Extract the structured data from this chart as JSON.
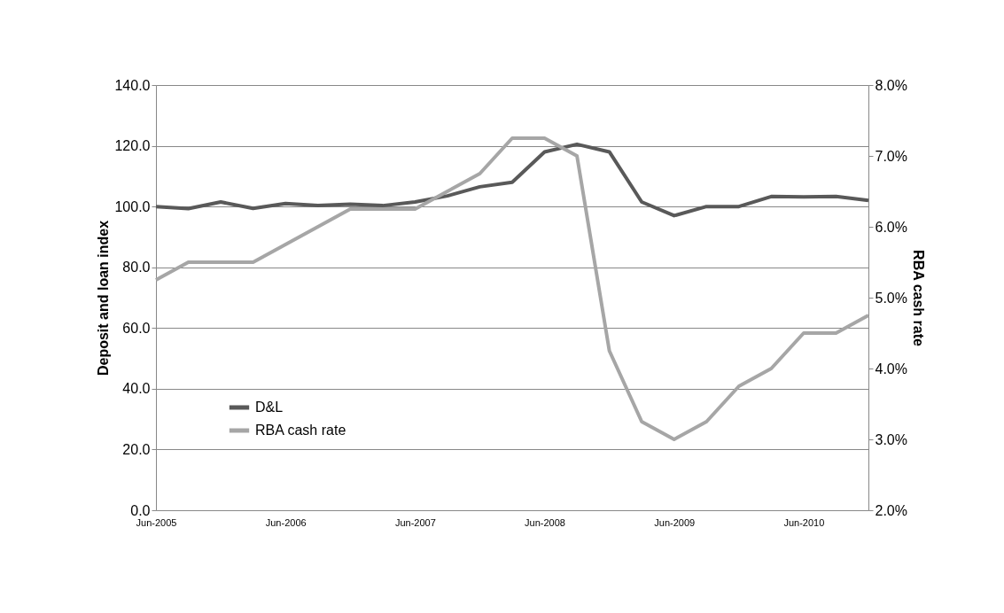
{
  "chart_data": {
    "type": "line",
    "categories": [
      "Jun-2005",
      null,
      null,
      null,
      "Jun-2006",
      null,
      null,
      null,
      "Jun-2007",
      null,
      null,
      null,
      "Jun-2008",
      null,
      null,
      null,
      "Jun-2009",
      null,
      null,
      null,
      "Jun-2010",
      null,
      null
    ],
    "series": [
      {
        "name": "D&L",
        "color": "#595959",
        "values": [
          100,
          99.3,
          101.5,
          99.4,
          101,
          100.3,
          100.8,
          100.3,
          101.5,
          103.5,
          106.5,
          108,
          118,
          120.5,
          118,
          101.5,
          97,
          100,
          100,
          103.3,
          103.2,
          103.3,
          102
        ]
      },
      {
        "name": "RBA cash rate",
        "color": "#a6a6a6",
        "axis": "y2",
        "values": [
          5.25,
          5.5,
          5.5,
          5.5,
          5.75,
          6.0,
          6.25,
          6.25,
          6.25,
          6.5,
          6.75,
          7.25,
          7.25,
          7.0,
          4.25,
          3.25,
          3.0,
          3.25,
          3.75,
          4.0,
          4.5,
          4.5,
          4.75
        ]
      }
    ],
    "ylabel": "Deposit and loan index",
    "y2label": "RBA cash rate",
    "ylim": [
      0,
      140
    ],
    "yticks": [
      {
        "value": 0,
        "label": "0.0"
      },
      {
        "value": 20,
        "label": "20.0"
      },
      {
        "value": 40,
        "label": "40.0"
      },
      {
        "value": 60,
        "label": "60.0"
      },
      {
        "value": 80,
        "label": "80.0"
      },
      {
        "value": 100,
        "label": "100.0"
      },
      {
        "value": 120,
        "label": "120.0"
      },
      {
        "value": 140,
        "label": "140.0"
      }
    ],
    "y2lim": [
      2,
      8
    ],
    "y2ticks": [
      {
        "value": 2,
        "label": "2.0%"
      },
      {
        "value": 3,
        "label": "3.0%"
      },
      {
        "value": 4,
        "label": "4.0%"
      },
      {
        "value": 5,
        "label": "5.0%"
      },
      {
        "value": 6,
        "label": "6.0%"
      },
      {
        "value": 7,
        "label": "7.0%"
      },
      {
        "value": 8,
        "label": "8.0%"
      }
    ],
    "grid": "y",
    "legend": "bottom left",
    "marker": "none",
    "line_style": "solid"
  }
}
